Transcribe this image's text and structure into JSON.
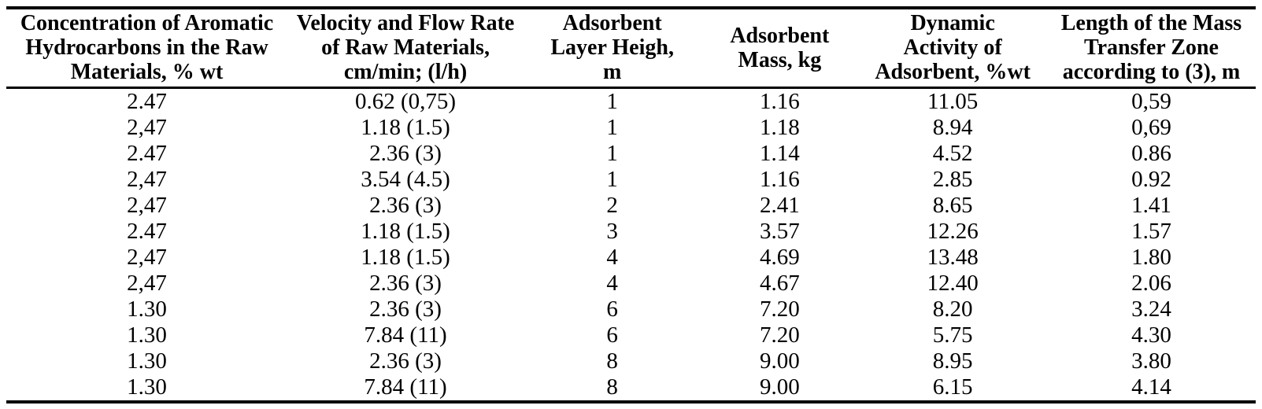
{
  "table": {
    "columns": [
      {
        "lines": [
          "Concentration of Aromatic",
          "Hydrocarbons in the Raw",
          "Materials, % wt"
        ]
      },
      {
        "lines": [
          "Velocity and Flow Rate",
          "of Raw Materials,",
          "cm/min; (l/h)"
        ]
      },
      {
        "lines": [
          "Adsorbent",
          "Layer Heigh,",
          "m"
        ]
      },
      {
        "lines": [
          "Adsorbent",
          "Mass, kg"
        ]
      },
      {
        "lines": [
          "Dynamic",
          "Activity of",
          "Adsorbent, %wt"
        ]
      },
      {
        "lines": [
          "Length of the Mass",
          "Transfer Zone",
          "according to (3), m"
        ]
      }
    ],
    "rows": [
      [
        "2.47",
        "0.62 (0,75)",
        "1",
        "1.16",
        "11.05",
        "0,59"
      ],
      [
        "2,47",
        "1.18 (1.5)",
        "1",
        "1.18",
        "8.94",
        "0,69"
      ],
      [
        "2.47",
        "2.36 (3)",
        "1",
        "1.14",
        "4.52",
        "0.86"
      ],
      [
        "2,47",
        "3.54 (4.5)",
        "1",
        "1.16",
        "2.85",
        "0.92"
      ],
      [
        "2,47",
        "2.36 (3)",
        "2",
        "2.41",
        "8.65",
        "1.41"
      ],
      [
        "2.47",
        "1.18 (1.5)",
        "3",
        "3.57",
        "12.26",
        "1.57"
      ],
      [
        "2,47",
        "1.18 (1.5)",
        "4",
        "4.69",
        "13.48",
        "1.80"
      ],
      [
        "2,47",
        "2.36 (3)",
        "4",
        "4.67",
        "12.40",
        "2.06"
      ],
      [
        "1.30",
        "2.36 (3)",
        "6",
        "7.20",
        "8.20",
        "3.24"
      ],
      [
        "1.30",
        "7.84 (11)",
        "6",
        "7.20",
        "5.75",
        "4.30"
      ],
      [
        "1.30",
        "2.36 (3)",
        "8",
        "9.00",
        "8.95",
        "3.80"
      ],
      [
        "1.30",
        "7.84 (11)",
        "8",
        "9.00",
        "6.15",
        "4.14"
      ]
    ]
  }
}
